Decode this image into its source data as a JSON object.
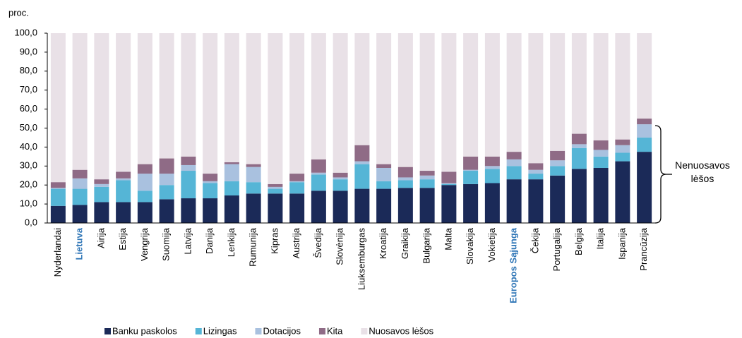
{
  "chart_data": {
    "type": "stacked_bar",
    "y_label": "proc.",
    "annotation": "Nenuosavos lėšos",
    "categories": [
      "Nyderlandai",
      "Lietuva",
      "Airija",
      "Estija",
      "Vengrija",
      "Suomija",
      "Latvija",
      "Danija",
      "Lenkija",
      "Rumunija",
      "Kipras",
      "Austrija",
      "Švedija",
      "Slovėnija",
      "Liuksemburgas",
      "Kroatija",
      "Graikija",
      "Bulgarija",
      "Malta",
      "Slovakija",
      "Vokietija",
      "Europos Sąjunga",
      "Čekija",
      "Portugalija",
      "Belgija",
      "Italija",
      "Ispanija",
      "Prancūzija"
    ],
    "highlight_categories": [
      1,
      21
    ],
    "highlight_color": "#2e75b6",
    "series": [
      {
        "name": "Banku paskolos",
        "color": "#1b2a58",
        "values": [
          9,
          9.5,
          11,
          11,
          11,
          12.5,
          13,
          13,
          14.5,
          15.5,
          15.5,
          15.5,
          17,
          17,
          18,
          18,
          18.5,
          18.5,
          20,
          20.5,
          21,
          23,
          23,
          25,
          28.5,
          29,
          32.5,
          37.5
        ]
      },
      {
        "name": "Lizingas",
        "color": "#55b5d6",
        "values": [
          9,
          8.5,
          8,
          11.5,
          6,
          7.5,
          14.5,
          8,
          7.5,
          6,
          2.5,
          6,
          8.5,
          6,
          13,
          4,
          4,
          4.5,
          0.5,
          7,
          7.5,
          7,
          3,
          5,
          11,
          6,
          4.5,
          7.5
        ]
      },
      {
        "name": "Dotacijos",
        "color": "#a9c1df",
        "values": [
          0.5,
          5.5,
          1.5,
          1,
          9,
          6,
          3,
          1,
          9,
          8,
          1,
          0.5,
          1,
          1,
          1.5,
          7,
          1.5,
          2,
          0.5,
          0.5,
          1.5,
          3.5,
          2,
          3,
          2,
          3.5,
          4,
          7
        ]
      },
      {
        "name": "Kita",
        "color": "#8f6b86",
        "values": [
          3,
          4.5,
          2.5,
          3.5,
          5,
          8,
          4.5,
          4,
          1,
          1.5,
          1.5,
          4,
          7,
          2.5,
          8.5,
          2,
          5.5,
          2.5,
          6,
          7,
          5,
          4,
          3.5,
          5,
          5.5,
          5,
          3,
          3
        ]
      },
      {
        "name": "Nuosavos lėšos",
        "color": "#e9e1e7",
        "values": [
          78.5,
          72,
          77,
          73,
          69,
          66,
          65,
          74,
          68,
          69,
          79.5,
          74,
          66.5,
          73.5,
          59,
          69,
          70.5,
          72.5,
          73,
          65,
          65,
          62.5,
          68.5,
          62,
          53,
          56.5,
          56,
          45
        ]
      }
    ],
    "ylim": [
      0,
      100
    ],
    "yticks": [
      {
        "value": 0,
        "label": "0,0"
      },
      {
        "value": 10,
        "label": "10,0"
      },
      {
        "value": 20,
        "label": "20,0"
      },
      {
        "value": 30,
        "label": "30,0"
      },
      {
        "value": 40,
        "label": "40,0"
      },
      {
        "value": 50,
        "label": "50,0"
      },
      {
        "value": 60,
        "label": "60,0"
      },
      {
        "value": 70,
        "label": "70,0"
      },
      {
        "value": 80,
        "label": "80,0"
      },
      {
        "value": 90,
        "label": "90,0"
      },
      {
        "value": 100,
        "label": "100,0"
      }
    ],
    "grid": false,
    "legend": "bottom"
  }
}
